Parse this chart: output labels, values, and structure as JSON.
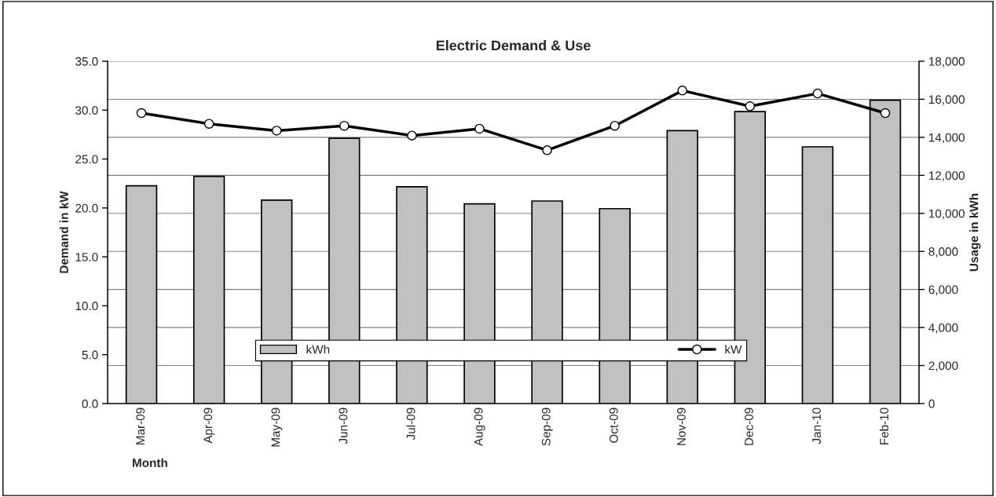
{
  "chart_data": {
    "type": "bar",
    "title": "Electric Demand & Use",
    "xlabel": "Month",
    "ylabel": "Demand in kW",
    "y2label": "Usage in kWh",
    "categories": [
      "Mar-09",
      "Apr-09",
      "May-09",
      "Jun-09",
      "Jul-09",
      "Aug-09",
      "Sep-09",
      "Oct-09",
      "Nov-09",
      "Dec-09",
      "Jan-10",
      "Feb-10"
    ],
    "series": [
      {
        "name": "kWh",
        "axis": "y2",
        "color": "#c0c0c0",
        "values": [
          11450,
          11950,
          10700,
          13950,
          11400,
          10500,
          10650,
          10250,
          14350,
          15350,
          13500,
          15950
        ]
      },
      {
        "name": "kW",
        "type": "line",
        "axis": "y",
        "color": "#000000",
        "marker": "circle",
        "line_style": "solid",
        "values": [
          29.7,
          28.6,
          27.9,
          28.4,
          27.4,
          28.1,
          25.9,
          28.4,
          32.0,
          30.4,
          31.7,
          29.7
        ]
      }
    ],
    "ylim": [
      0,
      35
    ],
    "yticks": [
      {
        "value": 0,
        "label": "0.0"
      },
      {
        "value": 5,
        "label": "5.0"
      },
      {
        "value": 10,
        "label": "10.0"
      },
      {
        "value": 15,
        "label": "15.0"
      },
      {
        "value": 20,
        "label": "20.0"
      },
      {
        "value": 25,
        "label": "25.0"
      },
      {
        "value": 30,
        "label": "30.0"
      },
      {
        "value": 35,
        "label": "35.0"
      }
    ],
    "y2lim": [
      0,
      18000
    ],
    "y2ticks": [
      0,
      {
        "value": 2000,
        "label": "2,000"
      },
      {
        "value": 4000,
        "label": "4,000"
      },
      {
        "value": 6000,
        "label": "6,000"
      },
      {
        "value": 8000,
        "label": "8,000"
      },
      {
        "value": 10000,
        "label": "10,000"
      },
      {
        "value": 12000,
        "label": "12,000"
      },
      {
        "value": 14000,
        "label": "14,000"
      },
      {
        "value": 16000,
        "label": "16,000"
      },
      {
        "value": 18000,
        "label": "18,000"
      }
    ],
    "grid": "y2",
    "legend": "bottom"
  }
}
